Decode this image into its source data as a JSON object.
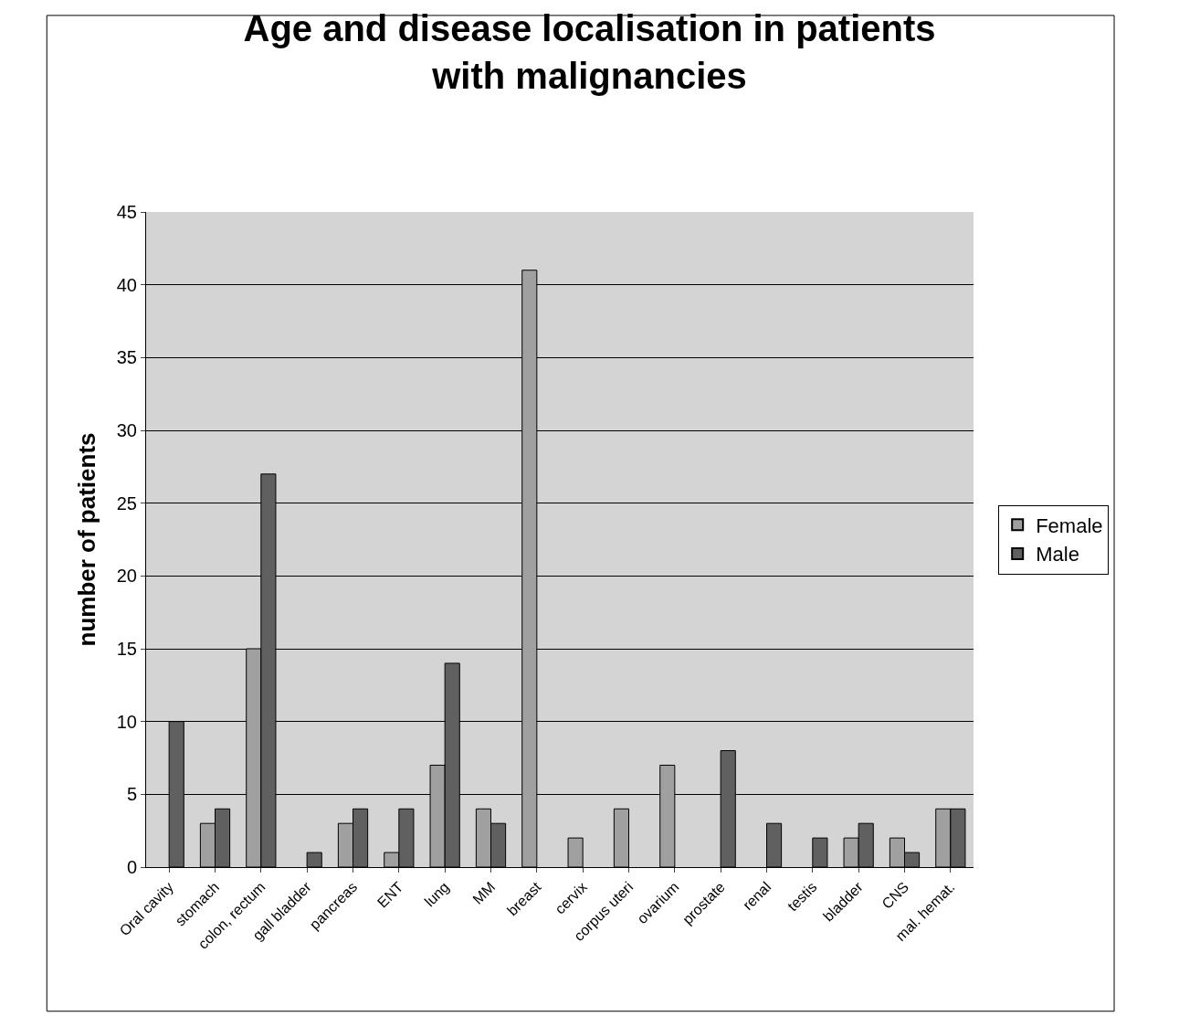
{
  "chart_data": {
    "type": "bar",
    "title": "Age and disease localisation in patients\nwith malignancies",
    "ylabel": "number of patients",
    "categories": [
      "Oral cavity",
      "stomach",
      "colon, rectum",
      "gall bladder",
      "pancreas",
      "ENT",
      "lung",
      "MM",
      "breast",
      "cervix",
      "corpus uteri",
      "ovarium",
      "prostate",
      "renal",
      "testis",
      "bladder",
      "CNS",
      "mal. hemat."
    ],
    "series": [
      {
        "name": "Female",
        "color": "#a0a0a0",
        "values": [
          null,
          3,
          15,
          null,
          3,
          1,
          7,
          4,
          41,
          2,
          4,
          7,
          null,
          null,
          null,
          2,
          2,
          4
        ]
      },
      {
        "name": "Male",
        "color": "#606060",
        "values": [
          10,
          4,
          27,
          1,
          4,
          4,
          14,
          3,
          null,
          null,
          null,
          null,
          8,
          3,
          2,
          3,
          1,
          4
        ]
      }
    ],
    "ylim": [
      0,
      45
    ],
    "yticks": [
      0,
      5,
      10,
      15,
      20,
      25,
      30,
      35,
      40,
      45
    ],
    "grid": "y",
    "legend": "right"
  }
}
